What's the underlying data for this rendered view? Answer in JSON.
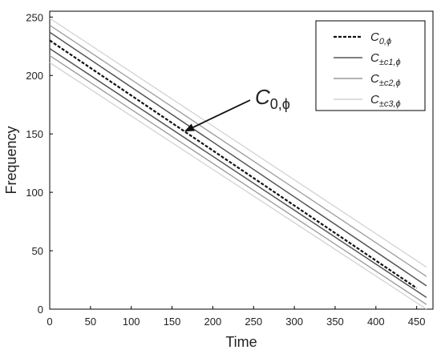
{
  "chart_data": {
    "type": "line",
    "xlabel": "Time",
    "ylabel": "Frequency",
    "xlim": [
      0,
      470
    ],
    "ylim": [
      0,
      255
    ],
    "xticks": [
      0,
      50,
      100,
      150,
      200,
      250,
      300,
      350,
      400,
      450
    ],
    "yticks": [
      0,
      50,
      100,
      150,
      200,
      250
    ],
    "grid": false,
    "legend_position": "top-right",
    "series": [
      {
        "name": "C",
        "subscript": "0,ϕ",
        "style": "dashed",
        "color": "#111111",
        "width": 2.2,
        "x": [
          0,
          450
        ],
        "y": [
          230,
          18
        ]
      },
      {
        "name": "C",
        "subscript": "±c1,ϕ",
        "style": "solid",
        "color": "#555555",
        "width": 1.5,
        "x": [
          0,
          462
        ],
        "y": [
          237,
          20
        ]
      },
      {
        "name": "C",
        "subscript": "±c1,ϕ",
        "style": "solid",
        "color": "#555555",
        "width": 1.5,
        "x": [
          0,
          462
        ],
        "y": [
          223,
          10
        ]
      },
      {
        "name": "C",
        "subscript": "±c2,ϕ",
        "style": "solid",
        "color": "#9a9a9a",
        "width": 1.3,
        "x": [
          0,
          462
        ],
        "y": [
          243,
          28
        ]
      },
      {
        "name": "C",
        "subscript": "±c2,ϕ",
        "style": "solid",
        "color": "#9a9a9a",
        "width": 1.3,
        "x": [
          0,
          462
        ],
        "y": [
          217,
          4
        ]
      },
      {
        "name": "C",
        "subscript": "±c3,ϕ",
        "style": "solid",
        "color": "#d2d2d2",
        "width": 1.3,
        "x": [
          0,
          462
        ],
        "y": [
          249,
          36
        ]
      },
      {
        "name": "C",
        "subscript": "±c3,ϕ",
        "style": "solid",
        "color": "#d2d2d2",
        "width": 1.3,
        "x": [
          0,
          462
        ],
        "y": [
          211,
          0
        ]
      }
    ],
    "legend": [
      {
        "label": "C",
        "subscript": "0,ϕ",
        "style": "dashed",
        "color": "#111111"
      },
      {
        "label": "C",
        "subscript": "±c1,ϕ",
        "style": "solid",
        "color": "#555555"
      },
      {
        "label": "C",
        "subscript": "±c2,ϕ",
        "style": "solid",
        "color": "#9a9a9a"
      },
      {
        "label": "C",
        "subscript": "±c3,ϕ",
        "style": "solid",
        "color": "#d2d2d2"
      }
    ],
    "annotation": {
      "label": "C",
      "subscript": "0,ϕ",
      "points_to": {
        "x": 165,
        "y": 152
      }
    }
  }
}
